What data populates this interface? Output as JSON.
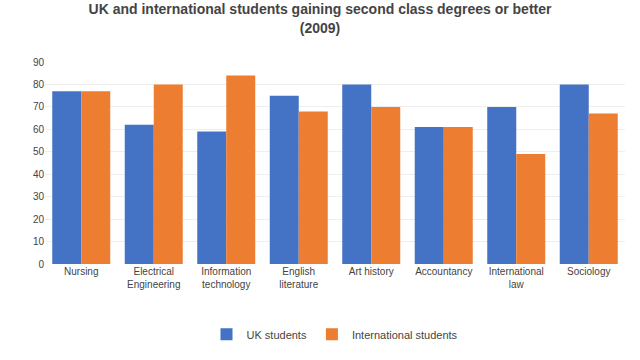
{
  "chart_data": {
    "type": "bar",
    "title": "UK and international students gaining second class degrees or better\n(2009)",
    "categories": [
      "Nursing",
      "Electrical\nEngineering",
      "Information\ntechnology",
      "English\nliterature",
      "Art history",
      "Accountancy",
      "International\nlaw",
      "Sociology"
    ],
    "series": [
      {
        "name": "UK students",
        "color": "#4472C4",
        "values": [
          77,
          62,
          59,
          75,
          80,
          61,
          70,
          80
        ]
      },
      {
        "name": "International students",
        "color": "#ED7D31",
        "values": [
          77,
          80,
          84,
          68,
          70,
          61,
          49,
          67
        ]
      }
    ],
    "ylim": [
      0,
      90
    ],
    "yticks": [
      0,
      10,
      20,
      30,
      40,
      50,
      60,
      70,
      80,
      90
    ],
    "grid": true,
    "legend": "bottom"
  }
}
